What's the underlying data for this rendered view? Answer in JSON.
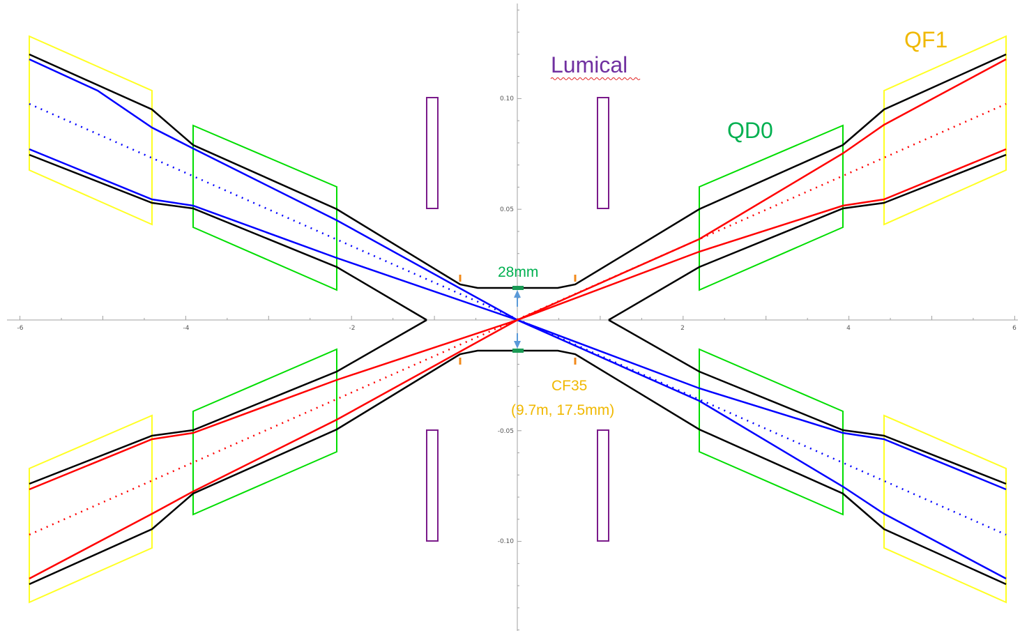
{
  "axes": {
    "x_ticks": [
      -6,
      -4,
      -2,
      2,
      4,
      6
    ],
    "y_ticks": [
      0.1,
      0.05,
      -0.05,
      -0.1
    ],
    "x_tick_labels": [
      "-6",
      "-4",
      "-2",
      "2",
      "4",
      "6"
    ],
    "y_tick_labels": [
      "0.10",
      "0.05",
      "-0.05",
      "-0.10"
    ]
  },
  "labels": {
    "lumical": "Lumical",
    "qd0": "QD0",
    "qf1": "QF1",
    "aperture": "28mm",
    "cf35": "CF35",
    "cf35_detail": "(9.7m, 17.5mm)"
  },
  "colors": {
    "envelope": "#000000",
    "beam_in": "#0000ff",
    "beam_out": "#ff0000",
    "qd0": "#00dd00",
    "qf1": "#ffff22",
    "lumical": "#7a1a8a",
    "flange": "#f28a1a",
    "aperture_marker": "#1a9a55",
    "aperture_arrow": "#5a9ad8",
    "label_lumical": "#7030a0",
    "label_qd0": "#00b050",
    "label_qf1": "#f0b800",
    "label_cf35": "#f0b800",
    "label_aperture": "#00b050"
  },
  "geometry": {
    "beampipe_upper": [
      [
        -6,
        0.12
      ],
      [
        -4.45,
        0.095
      ],
      [
        -3.9,
        0.078
      ],
      [
        -2.2,
        0.05
      ],
      [
        -0.5,
        0.015
      ],
      [
        0.5,
        0.015
      ],
      [
        2.2,
        0.05
      ],
      [
        3.9,
        0.078
      ],
      [
        4.45,
        0.095
      ],
      [
        6,
        0.12
      ]
    ],
    "beampipe_upper_inner": [
      [
        -6,
        0.075
      ],
      [
        -4.45,
        0.052
      ],
      [
        -3.9,
        0.05
      ],
      [
        -2.2,
        0.024
      ],
      [
        -1.1,
        0.0
      ],
      [
        1.1,
        0.0
      ],
      [
        2.2,
        0.024
      ],
      [
        3.9,
        0.05
      ],
      [
        4.45,
        0.052
      ],
      [
        6,
        0.075
      ]
    ],
    "blue_upper_outer": [
      [
        -6,
        0.118
      ],
      [
        -5.2,
        0.108
      ],
      [
        -4.45,
        0.09
      ],
      [
        -3.9,
        0.076
      ],
      [
        -2.2,
        0.045
      ],
      [
        0,
        0.0
      ],
      [
        6,
        -0.118
      ]
    ],
    "blue_upper_inner": [
      [
        -6,
        0.077
      ],
      [
        -4.45,
        0.054
      ],
      [
        -3.9,
        0.05
      ],
      [
        -2.2,
        0.027
      ],
      [
        0,
        0.0
      ],
      [
        6,
        -0.077
      ]
    ],
    "blue_center": [
      [
        -6,
        0.097
      ],
      [
        0,
        0.0
      ],
      [
        6,
        -0.097
      ]
    ],
    "qd0_range": [
      2.2,
      3.9
    ],
    "qf1_range": [
      4.45,
      6.0
    ],
    "lumical_x": [
      1.0,
      1.1
    ],
    "lumical_y": [
      0.05,
      0.1
    ]
  }
}
